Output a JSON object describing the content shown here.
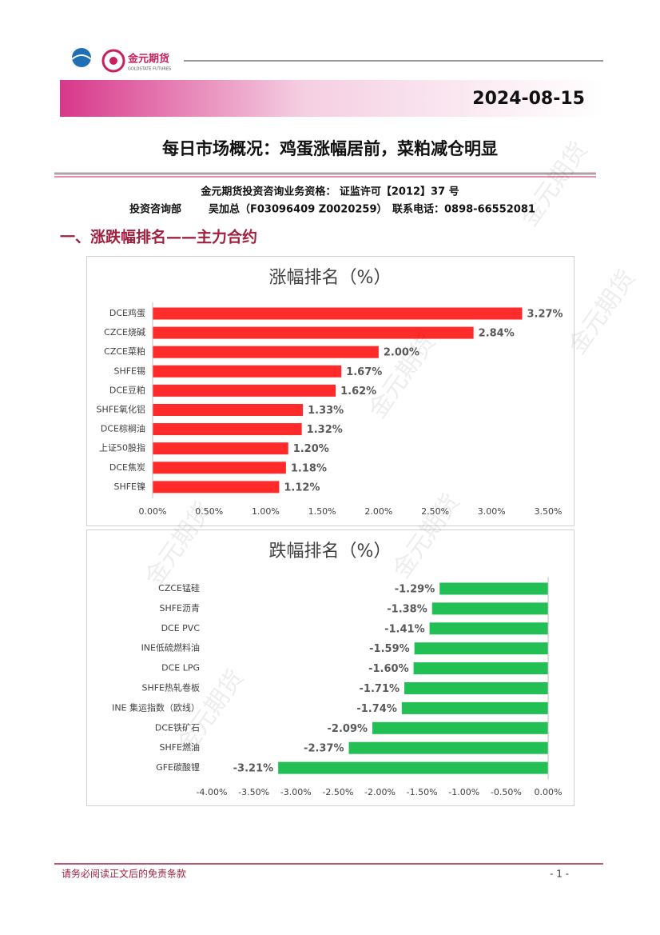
{
  "header": {
    "brand": "金元期货",
    "brand_en": "GOLDSTATE FUTURES",
    "date": "2024-08-15"
  },
  "title": "每日市场概况：鸡蛋涨幅居前，菜粕减仓明显",
  "qualification": "金元期货投资咨询业务资格：  证监许可【2012】37 号",
  "department": "投资咨询部",
  "analyst": "吴加总（F03096409 Z0020259）",
  "phone": "联系电话：0898-66552081",
  "section": "一、涨跌幅排名——主力合约",
  "watermark": "金元期货",
  "chart_data": [
    {
      "type": "bar",
      "orientation": "horizontal",
      "title": "涨幅排名（%）",
      "color": "#ff2b2b",
      "categories": [
        "DCE鸡蛋",
        "CZCE烧碱",
        "CZCE菜粕",
        "SHFE锡",
        "DCE豆粕",
        "SHFE氧化铝",
        "DCE棕榈油",
        "上证50股指",
        "DCE焦炭",
        "SHFE镍"
      ],
      "values": [
        3.27,
        2.84,
        2.0,
        1.67,
        1.62,
        1.33,
        1.32,
        1.2,
        1.18,
        1.12
      ],
      "value_labels": [
        "3.27%",
        "2.84%",
        "2.00%",
        "1.67%",
        "1.62%",
        "1.33%",
        "1.32%",
        "1.20%",
        "1.18%",
        "1.12%"
      ],
      "xlim": [
        0,
        3.5
      ],
      "xticks": [
        {
          "value": 0,
          "label": "0.00%"
        },
        {
          "value": 0.5,
          "label": "0.50%"
        },
        {
          "value": 1,
          "label": "1.00%"
        },
        {
          "value": 1.5,
          "label": "1.50%"
        },
        {
          "value": 2,
          "label": "2.00%"
        },
        {
          "value": 2.5,
          "label": "2.50%"
        },
        {
          "value": 3,
          "label": "3.00%"
        },
        {
          "value": 3.5,
          "label": "3.50%"
        }
      ]
    },
    {
      "type": "bar",
      "orientation": "horizontal",
      "title": "跌幅排名（%）",
      "color": "#22bf55",
      "categories": [
        "CZCE锰硅",
        "SHFE沥青",
        "DCE PVC",
        "INE低硫燃料油",
        "DCE LPG",
        "SHFE热轧卷板",
        "INE 集运指数（欧线）",
        "DCE铁矿石",
        "SHFE燃油",
        "GFE碳酸锂"
      ],
      "values": [
        -1.29,
        -1.38,
        -1.41,
        -1.59,
        -1.6,
        -1.71,
        -1.74,
        -2.09,
        -2.37,
        -3.21
      ],
      "value_labels": [
        "-1.29%",
        "-1.38%",
        "-1.41%",
        "-1.59%",
        "-1.60%",
        "-1.71%",
        "-1.74%",
        "-2.09%",
        "-2.37%",
        "-3.21%"
      ],
      "xlim": [
        -4,
        0
      ],
      "xticks": [
        {
          "value": -4,
          "label": "-4.00%"
        },
        {
          "value": -3.5,
          "label": "-3.50%"
        },
        {
          "value": -3,
          "label": "-3.00%"
        },
        {
          "value": -2.5,
          "label": "-2.50%"
        },
        {
          "value": -2,
          "label": "-2.00%"
        },
        {
          "value": -1.5,
          "label": "-1.50%"
        },
        {
          "value": -1,
          "label": "-1.00%"
        },
        {
          "value": -0.5,
          "label": "-0.50%"
        },
        {
          "value": 0,
          "label": "0.00%"
        }
      ]
    }
  ],
  "footer": {
    "disclaimer": "请务必阅读正文后的免责条款",
    "page": "- 1 -"
  }
}
